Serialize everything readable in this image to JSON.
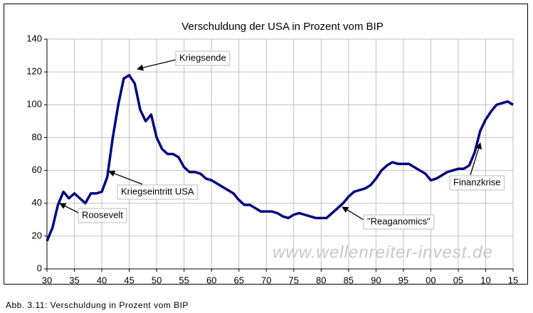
{
  "chart_data": {
    "type": "line",
    "title": "Verschuldung der USA in Prozent vom BIP",
    "x": [
      1930,
      1931,
      1932,
      1933,
      1934,
      1935,
      1936,
      1937,
      1938,
      1939,
      1940,
      1941,
      1942,
      1943,
      1944,
      1945,
      1946,
      1947,
      1948,
      1949,
      1950,
      1951,
      1952,
      1953,
      1954,
      1955,
      1956,
      1957,
      1958,
      1959,
      1960,
      1961,
      1962,
      1963,
      1964,
      1965,
      1966,
      1967,
      1968,
      1969,
      1970,
      1971,
      1972,
      1973,
      1974,
      1975,
      1976,
      1977,
      1978,
      1979,
      1980,
      1981,
      1982,
      1983,
      1984,
      1985,
      1986,
      1987,
      1988,
      1989,
      1990,
      1991,
      1992,
      1993,
      1994,
      1995,
      1996,
      1997,
      1998,
      1999,
      2000,
      2001,
      2002,
      2003,
      2004,
      2005,
      2006,
      2007,
      2008,
      2009,
      2010,
      2011,
      2012,
      2013,
      2014,
      2015
    ],
    "series": [
      {
        "color": "#000080",
        "values": [
          17,
          25,
          39,
          47,
          43,
          46,
          43,
          40,
          46,
          46,
          47,
          56,
          80,
          100,
          116,
          118,
          113,
          97,
          90,
          94,
          80,
          73,
          70,
          70,
          68,
          62,
          59,
          59,
          58,
          55,
          54,
          52,
          50,
          48,
          46,
          42,
          39,
          39,
          37,
          35,
          35,
          35,
          34,
          32,
          31,
          33,
          34,
          33,
          32,
          31,
          31,
          31,
          34,
          37,
          40,
          44,
          47,
          48,
          49,
          51,
          55,
          60,
          63,
          65,
          64,
          64,
          64,
          62,
          60,
          58,
          54,
          55,
          57,
          59,
          60,
          61,
          61,
          63,
          71,
          84,
          91,
          96,
          100,
          101,
          102,
          100
        ]
      }
    ],
    "xlim": [
      1930,
      2015
    ],
    "xticks": [
      {
        "value": 1930,
        "label": "30"
      },
      {
        "value": 1935,
        "label": "35"
      },
      {
        "value": 1940,
        "label": "40"
      },
      {
        "value": 1945,
        "label": "45"
      },
      {
        "value": 1950,
        "label": "50"
      },
      {
        "value": 1955,
        "label": "55"
      },
      {
        "value": 1960,
        "label": "60"
      },
      {
        "value": 1965,
        "label": "65"
      },
      {
        "value": 1970,
        "label": "70"
      },
      {
        "value": 1975,
        "label": "75"
      },
      {
        "value": 1980,
        "label": "80"
      },
      {
        "value": 1985,
        "label": "85"
      },
      {
        "value": 1990,
        "label": "90"
      },
      {
        "value": 1995,
        "label": "95"
      },
      {
        "value": 2000,
        "label": "00"
      },
      {
        "value": 2005,
        "label": "05"
      },
      {
        "value": 2010,
        "label": "10"
      },
      {
        "value": 2015,
        "label": "15"
      }
    ],
    "ylim": [
      0,
      140
    ],
    "yticks": [
      0,
      20,
      40,
      60,
      80,
      100,
      120,
      140
    ],
    "grid": true,
    "annotations": [
      "Roosevelt",
      "Kriegseintritt USA",
      "Kriegsende",
      "\"Reaganomics\"",
      "Finanzkrise"
    ],
    "watermark": "www.wellenreiter-invest.de"
  },
  "caption": "Abb. 3.11: Verschuldung in Prozent vom BIP"
}
